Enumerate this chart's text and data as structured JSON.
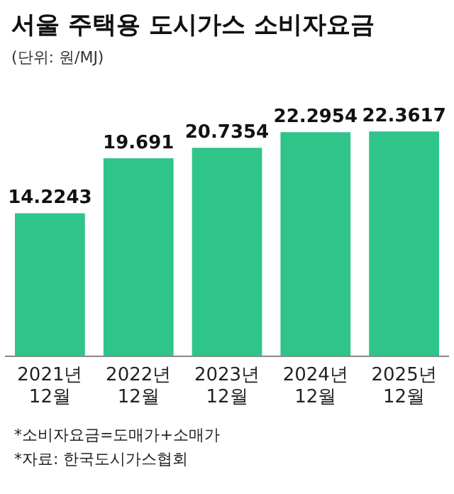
{
  "chart_data": {
    "type": "bar",
    "title": "서울 주택용 도시가스 소비자요금",
    "subtitle": "(단위: 원/MJ)",
    "categories": [
      "2021년 12월",
      "2022년 12월",
      "2023년 12월",
      "2024년 12월",
      "2025년 12월"
    ],
    "values": [
      14.2243,
      19.691,
      20.7354,
      22.2954,
      22.3617
    ],
    "color": "#2fc48a",
    "data_labels": true,
    "grid": false,
    "legend": false,
    "annotations": [
      "*소비자요금=도매가+소매가",
      "*자료: 한국도시가스협회"
    ]
  }
}
